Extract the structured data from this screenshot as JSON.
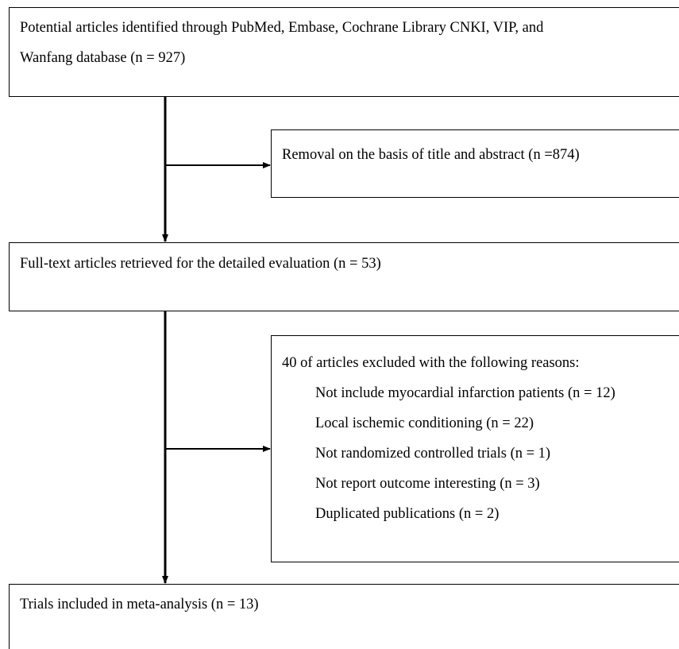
{
  "flowchart": {
    "identification": {
      "line1": "Potential articles identified through PubMed, Embase, Cochrane Library CNKI, VIP, and",
      "line2": "Wanfang database (n = 927)"
    },
    "removal": {
      "text": "Removal on the basis of title and abstract (n =874)"
    },
    "fulltext": {
      "text": "Full-text articles retrieved for the detailed evaluation (n = 53)"
    },
    "excluded": {
      "heading": "40 of articles excluded with the following reasons:",
      "reasons": [
        "Not include myocardial infarction patients (n = 12)",
        "Local ischemic conditioning (n = 22)",
        "Not randomized controlled trials (n = 1)",
        "Not report outcome interesting (n = 3)",
        "Duplicated publications (n = 2)"
      ]
    },
    "included": {
      "text": "Trials included in meta-analysis (n = 13)"
    }
  }
}
